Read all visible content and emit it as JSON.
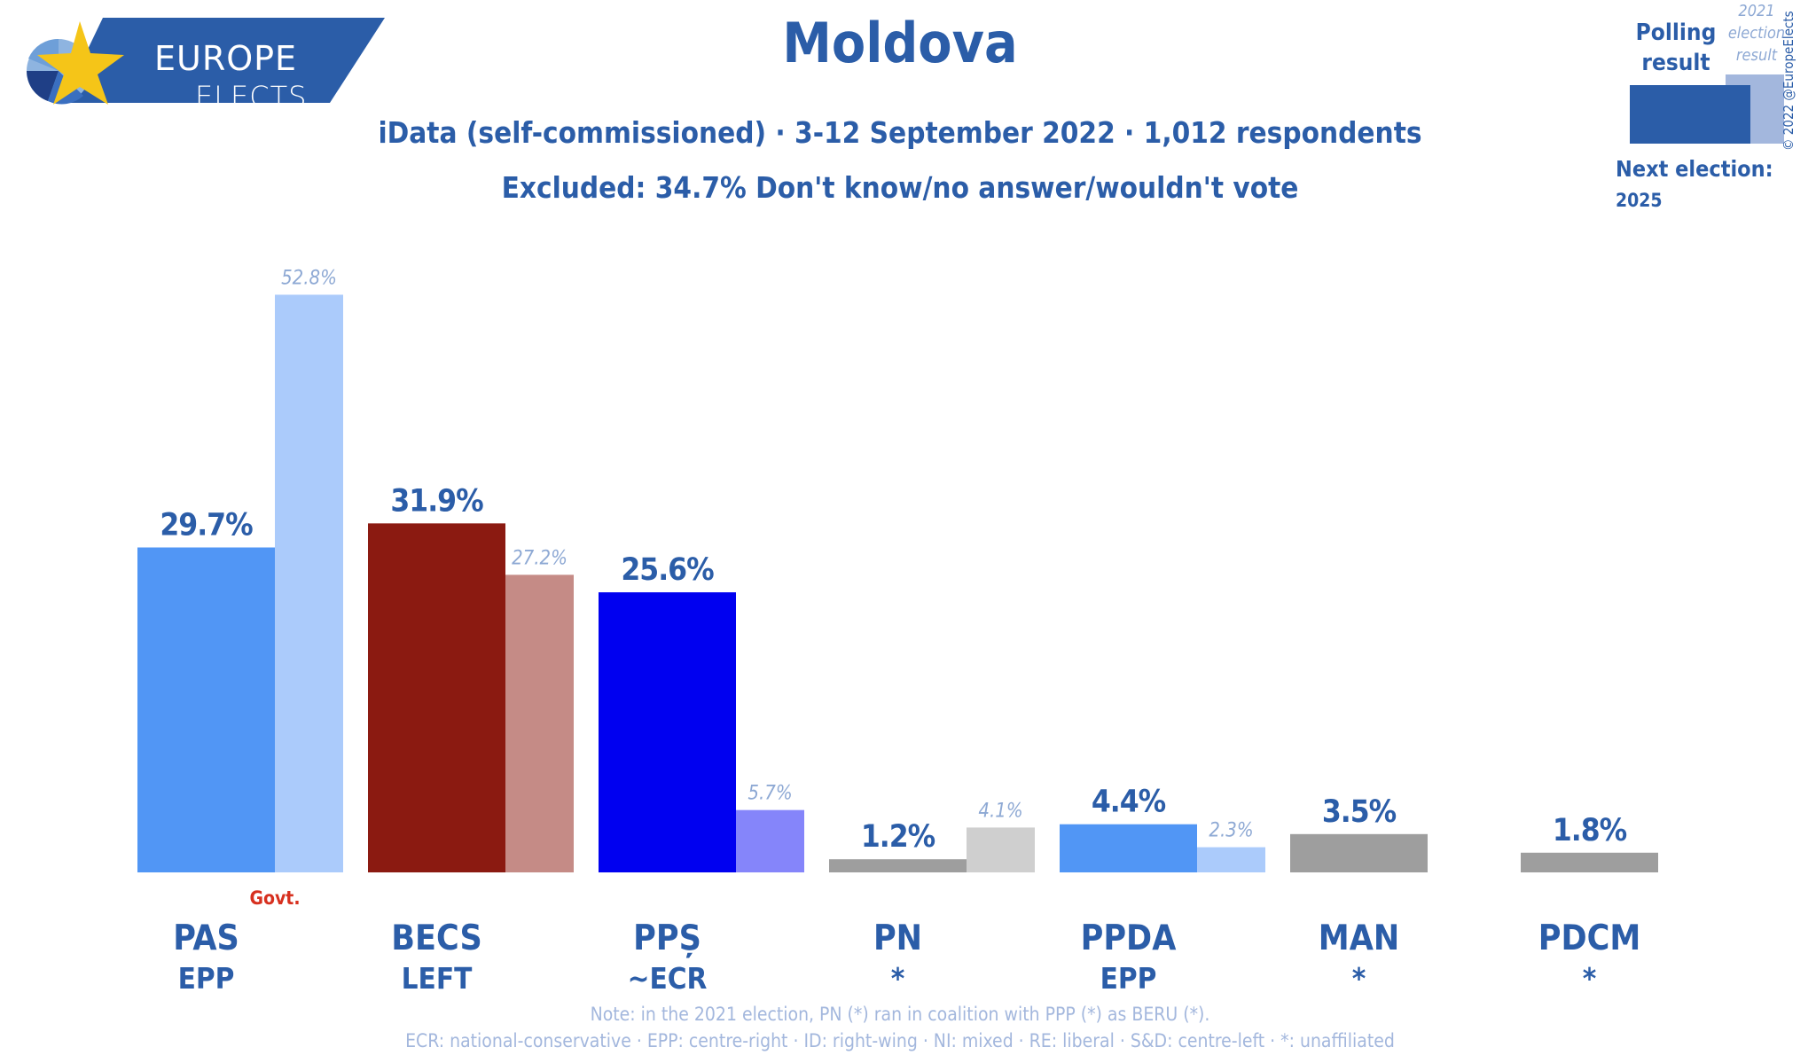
{
  "logo": {
    "line1": "EUROPE",
    "line2": "ELECTS"
  },
  "header": {
    "title": "Moldova",
    "subtitle": "iData (self-commissioned) · 3-12 September 2022 · 1,012 respondents",
    "excluded": "Excluded: 34.7% Don't know/no answer/wouldn't vote"
  },
  "legend": {
    "poll_label": "Polling result",
    "election_label": "2021 election result",
    "next_election_label": "Next election:",
    "next_election_year": "2025",
    "copyright": "© 2022 @EuropeElects"
  },
  "chart_data": {
    "type": "bar",
    "title": "Moldova",
    "ylim": [
      0,
      55
    ],
    "grid": false,
    "legend": "top-right",
    "categories": [
      "PAS",
      "BECS",
      "PPȘ",
      "PN",
      "PPDA",
      "MAN",
      "PDCM"
    ],
    "groups": [
      "EPP",
      "LEFT",
      "~ECR",
      "*",
      "EPP",
      "*",
      "*"
    ],
    "series": [
      {
        "name": "Polling result",
        "values": [
          29.7,
          31.9,
          25.6,
          1.2,
          4.4,
          3.5,
          1.8
        ],
        "labels": [
          "29.7%",
          "31.9%",
          "25.6%",
          "1.2%",
          "4.4%",
          "3.5%",
          "1.8%"
        ]
      },
      {
        "name": "2021 election result",
        "values": [
          52.8,
          27.2,
          5.7,
          4.1,
          2.3,
          null,
          null
        ],
        "labels": [
          "52.8%",
          "27.2%",
          "5.7%",
          "4.1%",
          "2.3%",
          null,
          null
        ]
      }
    ],
    "colors": {
      "poll": [
        "#5196f5",
        "#8b1a11",
        "#0000f0",
        "#9e9e9e",
        "#5196f5",
        "#9e9e9e",
        "#9e9e9e"
      ],
      "election": [
        "#abcbfb",
        "#c58b86",
        "#8585fa",
        "#cfcfcf",
        "#abcbfb",
        null,
        null
      ]
    },
    "government": {
      "party": "PAS",
      "label": "Govt."
    }
  },
  "footer": {
    "note": "Note: in the 2021 election, PN (*) ran in coalition with PPP (*) as BERU (*).",
    "groups": "ECR: national-conservative · EPP: centre-right · ID: right-wing · NI: mixed · RE: liberal · S&D: centre-left · *: unaffiliated"
  }
}
